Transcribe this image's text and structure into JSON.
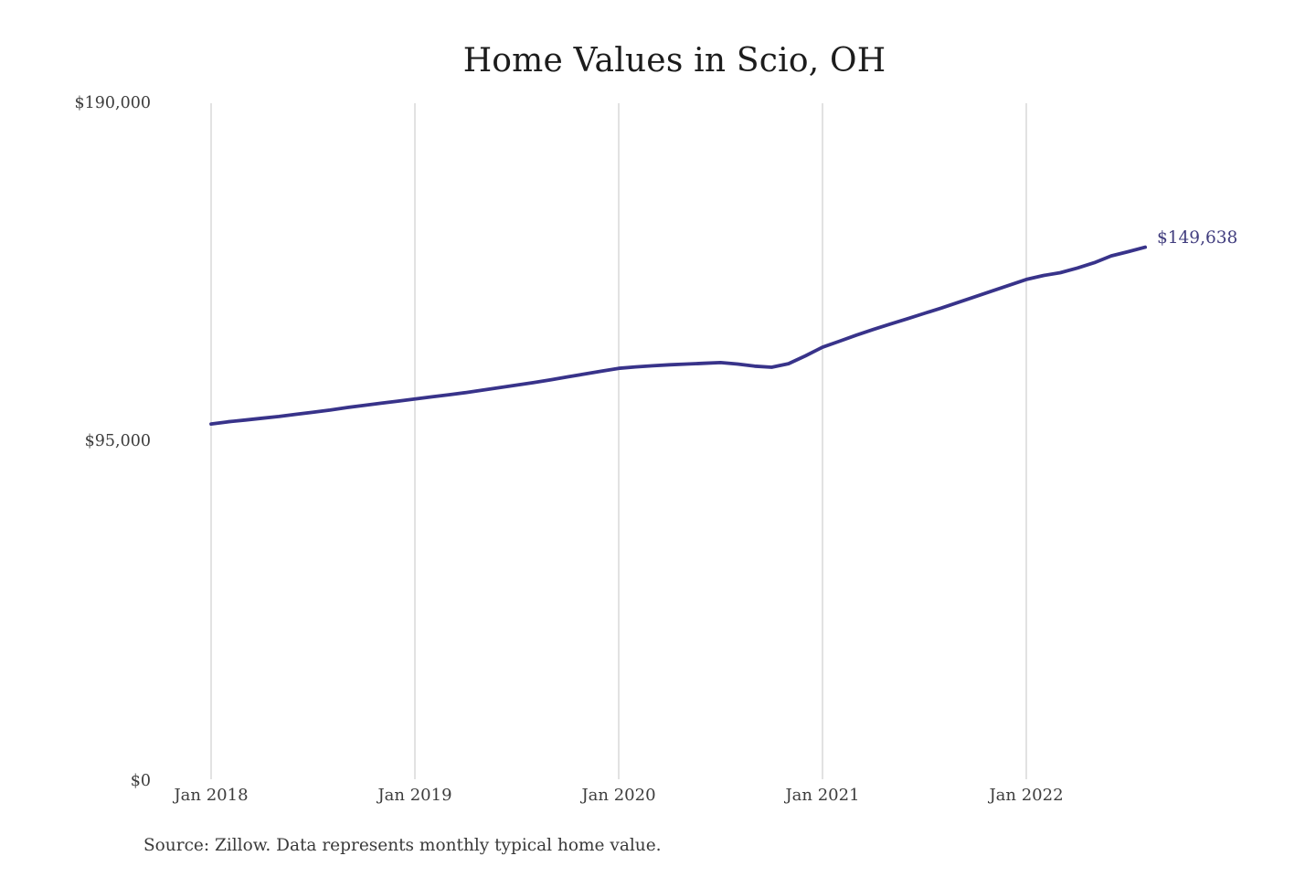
{
  "chart": {
    "title": "Home Values in Scio, OH"
  },
  "chart_data": {
    "type": "line",
    "title": "Home Values in Scio, OH",
    "series_name": "Monthly typical home value",
    "xlabel": "",
    "ylabel": "",
    "ylim": [
      0,
      190000
    ],
    "y_ticks": [
      0,
      95000,
      190000
    ],
    "y_tick_labels": [
      "$0",
      "$95,000",
      "$190,000"
    ],
    "x_tick_labels": [
      "Jan 2018",
      "Jan 2019",
      "Jan 2020",
      "Jan 2021",
      "Jan 2022"
    ],
    "grid": "vertical-only",
    "legend": "none",
    "line_color": "#38338a",
    "annotation_color": "#413d7e",
    "grid_color": "#c6c6c6",
    "end_label": "$149,638",
    "end_value": 149638,
    "months": [
      "Jan 2018",
      "Feb 2018",
      "Mar 2018",
      "Apr 2018",
      "May 2018",
      "Jun 2018",
      "Jul 2018",
      "Aug 2018",
      "Sep 2018",
      "Oct 2018",
      "Nov 2018",
      "Dec 2018",
      "Jan 2019",
      "Feb 2019",
      "Mar 2019",
      "Apr 2019",
      "May 2019",
      "Jun 2019",
      "Jul 2019",
      "Aug 2019",
      "Sep 2019",
      "Oct 2019",
      "Nov 2019",
      "Dec 2019",
      "Jan 2020",
      "Feb 2020",
      "Mar 2020",
      "Apr 2020",
      "May 2020",
      "Jun 2020",
      "Jul 2020",
      "Aug 2020",
      "Sep 2020",
      "Oct 2020",
      "Nov 2020",
      "Dec 2020",
      "Jan 2021",
      "Feb 2021",
      "Mar 2021",
      "Apr 2021",
      "May 2021",
      "Jun 2021",
      "Jul 2021",
      "Aug 2021",
      "Sep 2021",
      "Oct 2021",
      "Nov 2021",
      "Dec 2021",
      "Jan 2022",
      "Feb 2022",
      "Mar 2022",
      "Apr 2022",
      "May 2022",
      "Jun 2022",
      "Jul 2022",
      "Aug 2022"
    ],
    "values": [
      100100,
      100700,
      101200,
      101700,
      102200,
      102800,
      103400,
      104000,
      104700,
      105300,
      105900,
      106500,
      107100,
      107700,
      108300,
      108900,
      109600,
      110300,
      111000,
      111700,
      112500,
      113300,
      114100,
      114900,
      115700,
      116100,
      116400,
      116700,
      116900,
      117100,
      117300,
      116900,
      116300,
      116000,
      117000,
      119200,
      121600,
      123300,
      125000,
      126600,
      128100,
      129600,
      131100,
      132600,
      134200,
      135800,
      137400,
      139000,
      140600,
      141700,
      142500,
      143800,
      145300,
      147200,
      148400,
      149638
    ],
    "source_note": "Source: Zillow. Data represents monthly typical home value."
  }
}
